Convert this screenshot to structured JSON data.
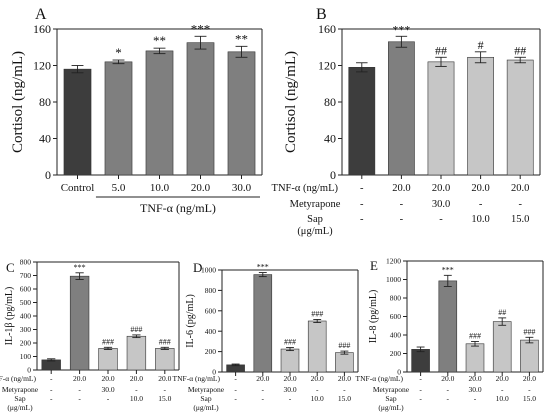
{
  "colors": {
    "dark": "#3d3d3d",
    "mid": "#7f7f7f",
    "light": "#c6c6c6"
  },
  "chart_data": [
    {
      "type": "bar",
      "panel_label": "A",
      "ylabel": "Cortisol (ng/mL)",
      "xlabel": "TNF-α (ng/mL)",
      "ylim": [
        0,
        160
      ],
      "yticks": [
        0,
        40,
        80,
        120,
        160
      ],
      "categories": [
        "Control",
        "5.0",
        "10.0",
        "20.0",
        "30.0"
      ],
      "values": [
        116,
        124,
        136,
        145,
        135
      ],
      "errors": [
        4,
        2,
        3,
        7,
        6
      ],
      "significance": [
        "",
        "*",
        "**",
        "***",
        "**"
      ],
      "bar_colors": [
        "dark",
        "mid",
        "mid",
        "mid",
        "mid"
      ]
    },
    {
      "type": "bar",
      "panel_label": "B",
      "ylabel": "Cortisol (ng/mL)",
      "ylim": [
        0,
        160
      ],
      "yticks": [
        0,
        40,
        80,
        120,
        160
      ],
      "values": [
        118,
        146,
        124,
        129,
        126
      ],
      "errors": [
        5,
        6,
        5,
        6,
        3
      ],
      "significance": [
        "",
        "***",
        "##",
        "#",
        "##"
      ],
      "bar_colors": [
        "dark",
        "mid",
        "light",
        "light",
        "light"
      ],
      "condition_rows": [
        {
          "label": "TNF-α (ng/mL)",
          "values": [
            "-",
            "20.0",
            "20.0",
            "20.0",
            "20.0"
          ]
        },
        {
          "label": "Metyrapone",
          "values": [
            "-",
            "-",
            "30.0",
            "-",
            "-"
          ]
        },
        {
          "label": "Sap",
          "label2": "(μg/mL)",
          "values": [
            "-",
            "-",
            "-",
            "10.0",
            "15.0"
          ]
        }
      ]
    },
    {
      "type": "bar",
      "panel_label": "C",
      "ylabel": "IL-1β (pg/mL)",
      "ylim": [
        0,
        800
      ],
      "yticks": [
        0,
        100,
        200,
        300,
        400,
        500,
        600,
        700,
        800
      ],
      "values": [
        75,
        695,
        160,
        250,
        160
      ],
      "errors": [
        8,
        25,
        8,
        10,
        8
      ],
      "significance": [
        "",
        "***",
        "###",
        "###",
        "###"
      ],
      "bar_colors": [
        "dark",
        "mid",
        "light",
        "light",
        "light"
      ],
      "condition_rows": [
        {
          "label": "TNF-α (ng/mL)",
          "values": [
            "-",
            "20.0",
            "20.0",
            "20.0",
            "20.0"
          ]
        },
        {
          "label": "Metyrapone",
          "values": [
            "-",
            "-",
            "30.0",
            "-",
            "-"
          ]
        },
        {
          "label": "Sap",
          "label2": "(μg/mL)",
          "values": [
            "-",
            "-",
            "-",
            "10.0",
            "15.0"
          ]
        }
      ]
    },
    {
      "type": "bar",
      "panel_label": "D",
      "ylabel": "IL-6 (pg/mL)",
      "ylim": [
        0,
        1000
      ],
      "yticks": [
        0,
        200,
        400,
        600,
        800,
        1000
      ],
      "values": [
        70,
        955,
        225,
        500,
        190
      ],
      "errors": [
        8,
        20,
        15,
        15,
        15
      ],
      "significance": [
        "",
        "***",
        "###",
        "###",
        "###"
      ],
      "bar_colors": [
        "dark",
        "mid",
        "light",
        "light",
        "light"
      ],
      "condition_rows": [
        {
          "label": "TNF-α (ng/mL)",
          "values": [
            "-",
            "20.0",
            "20.0",
            "20.0",
            "20.0"
          ]
        },
        {
          "label": "Metyrapone",
          "values": [
            "-",
            "-",
            "30.0",
            "-",
            "-"
          ]
        },
        {
          "label": "Sap",
          "label2": "(μg/mL)",
          "values": [
            "-",
            "-",
            "-",
            "10.0",
            "15.0"
          ]
        }
      ]
    },
    {
      "type": "bar",
      "panel_label": "E",
      "ylabel": "IL-8 (pg/mL)",
      "ylim": [
        0,
        1200
      ],
      "yticks": [
        0,
        200,
        400,
        600,
        800,
        1000,
        1200
      ],
      "values": [
        245,
        985,
        305,
        545,
        345
      ],
      "errors": [
        25,
        60,
        25,
        40,
        30
      ],
      "significance": [
        "",
        "***",
        "###",
        "##",
        "###"
      ],
      "bar_colors": [
        "dark",
        "mid",
        "light",
        "light",
        "light"
      ],
      "condition_rows": [
        {
          "label": "TNF-α (ng/mL)",
          "values": [
            "-",
            "20.0",
            "20.0",
            "20.0",
            "20.0"
          ]
        },
        {
          "label": "Metyrapone",
          "values": [
            "-",
            "-",
            "30.0",
            "-",
            "-"
          ]
        },
        {
          "label": "Sap",
          "label2": "(μg/mL)",
          "values": [
            "-",
            "-",
            "-",
            "10.0",
            "15.0"
          ]
        }
      ]
    }
  ]
}
